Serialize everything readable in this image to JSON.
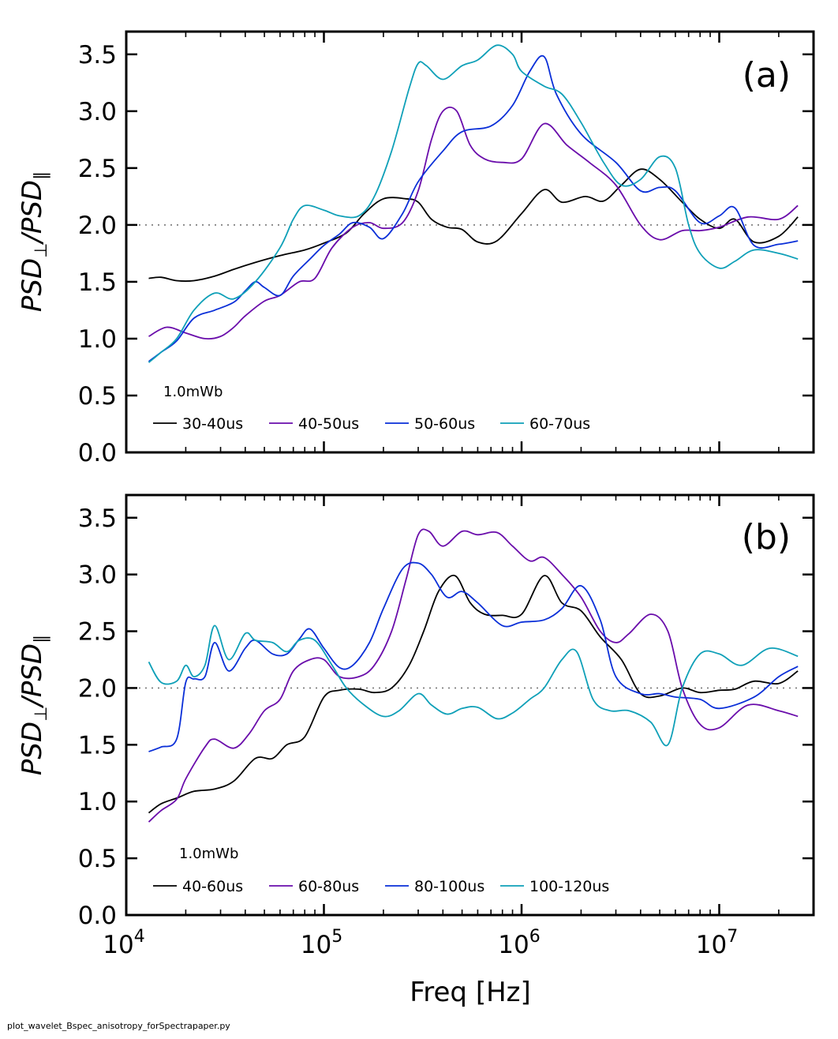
{
  "footer": "plot_wavelet_Bspec_anisotropy_forSpectrapaper.py",
  "chart_data": [
    {
      "type": "line",
      "panel_label": "(a)",
      "xscale": "log",
      "xlim": [
        10000,
        30000000
      ],
      "ylim": [
        0,
        3.7
      ],
      "xlabel": "",
      "ylabel": "PSD⊥/PSD∥",
      "yticks": [
        "0.0",
        "0.5",
        "1.0",
        "1.5",
        "2.0",
        "2.5",
        "3.0",
        "3.5"
      ],
      "xticks": [],
      "reference_line": 2.0,
      "legend_title": "1.0mWb",
      "legend_position": "lower-left",
      "series": [
        {
          "name": "30-40us",
          "color": "#000000",
          "x": [
            13000,
            15000,
            18000,
            22000,
            28000,
            35000,
            45000,
            60000,
            80000,
            100000,
            130000,
            160000,
            200000,
            260000,
            300000,
            350000,
            420000,
            500000,
            600000,
            750000,
            1000000,
            1300000,
            1600000,
            2100000,
            2600000,
            3200000,
            4000000,
            5000000,
            6500000,
            8000000,
            10000000,
            12000000,
            15000000,
            20000000,
            25000000
          ],
          "y": [
            1.53,
            1.54,
            1.51,
            1.51,
            1.55,
            1.61,
            1.67,
            1.73,
            1.78,
            1.84,
            1.93,
            2.1,
            2.23,
            2.23,
            2.2,
            2.05,
            1.98,
            1.96,
            1.85,
            1.86,
            2.1,
            2.31,
            2.2,
            2.25,
            2.21,
            2.35,
            2.49,
            2.4,
            2.2,
            2.05,
            1.97,
            2.05,
            1.85,
            1.9,
            2.07
          ]
        },
        {
          "name": "40-50us",
          "color": "#6a0dab",
          "x": [
            13000,
            16000,
            20000,
            25000,
            30000,
            35000,
            40000,
            50000,
            60000,
            75000,
            90000,
            110000,
            140000,
            170000,
            200000,
            250000,
            300000,
            350000,
            400000,
            470000,
            550000,
            650000,
            800000,
            1000000,
            1300000,
            1700000,
            2200000,
            3000000,
            4000000,
            5000000,
            6500000,
            8000000,
            10000000,
            14000000,
            20000000,
            25000000
          ],
          "y": [
            1.02,
            1.1,
            1.05,
            1.0,
            1.02,
            1.1,
            1.2,
            1.33,
            1.38,
            1.5,
            1.53,
            1.8,
            1.98,
            2.02,
            1.97,
            2.02,
            2.3,
            2.75,
            3.0,
            3.0,
            2.7,
            2.58,
            2.55,
            2.58,
            2.89,
            2.7,
            2.55,
            2.35,
            2.0,
            1.87,
            1.95,
            1.95,
            1.98,
            2.07,
            2.05,
            2.17
          ]
        },
        {
          "name": "50-60us",
          "color": "#0a2fd8",
          "x": [
            13000,
            15000,
            18000,
            22000,
            28000,
            35000,
            40000,
            45000,
            50000,
            60000,
            70000,
            85000,
            100000,
            120000,
            140000,
            170000,
            200000,
            250000,
            300000,
            400000,
            500000,
            700000,
            900000,
            1100000,
            1300000,
            1500000,
            2000000,
            3000000,
            4000000,
            5000000,
            6000000,
            8000000,
            10000000,
            12000000,
            15000000,
            20000000,
            25000000
          ],
          "y": [
            0.8,
            0.88,
            0.98,
            1.18,
            1.25,
            1.32,
            1.42,
            1.5,
            1.45,
            1.38,
            1.55,
            1.7,
            1.82,
            1.92,
            2.02,
            1.98,
            1.88,
            2.1,
            2.38,
            2.65,
            2.82,
            2.87,
            3.05,
            3.35,
            3.48,
            3.15,
            2.8,
            2.55,
            2.3,
            2.33,
            2.3,
            2.02,
            2.08,
            2.15,
            1.82,
            1.83,
            1.86
          ]
        },
        {
          "name": "60-70us",
          "color": "#0fa0b8",
          "x": [
            13000,
            15000,
            18000,
            22000,
            28000,
            35000,
            45000,
            60000,
            70000,
            80000,
            100000,
            120000,
            150000,
            180000,
            220000,
            270000,
            300000,
            330000,
            400000,
            500000,
            600000,
            750000,
            900000,
            1000000,
            1300000,
            1600000,
            2000000,
            2600000,
            3200000,
            4000000,
            5000000,
            6000000,
            7000000,
            8000000,
            10000000,
            12000000,
            15000000,
            20000000,
            25000000
          ],
          "y": [
            0.79,
            0.88,
            1.0,
            1.25,
            1.4,
            1.35,
            1.5,
            1.8,
            2.05,
            2.17,
            2.13,
            2.08,
            2.08,
            2.25,
            2.65,
            3.2,
            3.42,
            3.4,
            3.28,
            3.4,
            3.45,
            3.58,
            3.5,
            3.35,
            3.22,
            3.15,
            2.9,
            2.55,
            2.35,
            2.4,
            2.6,
            2.5,
            2.0,
            1.75,
            1.62,
            1.68,
            1.78,
            1.75,
            1.7
          ]
        }
      ]
    },
    {
      "type": "line",
      "panel_label": "(b)",
      "xscale": "log",
      "xlim": [
        10000,
        30000000
      ],
      "ylim": [
        0,
        3.7
      ],
      "xlabel": "Freq [Hz]",
      "ylabel": "PSD⊥/PSD∥",
      "yticks": [
        "0.0",
        "0.5",
        "1.0",
        "1.5",
        "2.0",
        "2.5",
        "3.0",
        "3.5"
      ],
      "xticks": [
        {
          "base": "10",
          "exp": "4"
        },
        {
          "base": "10",
          "exp": "5"
        },
        {
          "base": "10",
          "exp": "6"
        },
        {
          "base": "10",
          "exp": "7"
        }
      ],
      "reference_line": 2.0,
      "legend_title": "1.0mWb",
      "legend_position": "lower-left",
      "series": [
        {
          "name": "40-60us",
          "color": "#000000",
          "x": [
            13000,
            15000,
            18000,
            22000,
            28000,
            35000,
            45000,
            55000,
            65000,
            80000,
            100000,
            120000,
            150000,
            180000,
            220000,
            270000,
            320000,
            380000,
            460000,
            550000,
            650000,
            800000,
            1000000,
            1300000,
            1600000,
            2000000,
            2500000,
            3200000,
            4000000,
            5000000,
            6500000,
            8000000,
            10000000,
            12000000,
            15000000,
            20000000,
            25000000
          ],
          "y": [
            0.9,
            0.98,
            1.03,
            1.09,
            1.11,
            1.18,
            1.38,
            1.38,
            1.5,
            1.57,
            1.92,
            1.98,
            1.99,
            1.96,
            2.0,
            2.2,
            2.5,
            2.85,
            2.99,
            2.75,
            2.65,
            2.64,
            2.65,
            2.99,
            2.75,
            2.68,
            2.45,
            2.25,
            1.95,
            1.93,
            2.0,
            1.96,
            1.98,
            1.99,
            2.06,
            2.04,
            2.15
          ]
        },
        {
          "name": "60-80us",
          "color": "#6a0dab",
          "x": [
            13000,
            15000,
            18000,
            20000,
            25000,
            28000,
            35000,
            42000,
            50000,
            60000,
            70000,
            85000,
            100000,
            120000,
            150000,
            180000,
            220000,
            260000,
            300000,
            340000,
            400000,
            500000,
            600000,
            750000,
            900000,
            1100000,
            1300000,
            1600000,
            2000000,
            2500000,
            3000000,
            3500000,
            4500000,
            5500000,
            6500000,
            8000000,
            10000000,
            14000000,
            20000000,
            25000000
          ],
          "y": [
            0.82,
            0.92,
            1.02,
            1.2,
            1.48,
            1.55,
            1.47,
            1.6,
            1.8,
            1.9,
            2.15,
            2.25,
            2.25,
            2.1,
            2.1,
            2.2,
            2.5,
            2.95,
            3.35,
            3.38,
            3.25,
            3.38,
            3.35,
            3.37,
            3.25,
            3.12,
            3.15,
            3.0,
            2.8,
            2.5,
            2.4,
            2.48,
            2.65,
            2.5,
            2.0,
            1.68,
            1.65,
            1.85,
            1.8,
            1.75
          ]
        },
        {
          "name": "80-100us",
          "color": "#0a2fd8",
          "x": [
            13000,
            15000,
            18000,
            20000,
            22000,
            25000,
            28000,
            33000,
            40000,
            45000,
            55000,
            65000,
            75000,
            85000,
            100000,
            120000,
            140000,
            170000,
            200000,
            250000,
            300000,
            350000,
            420000,
            500000,
            600000,
            800000,
            1000000,
            1300000,
            1600000,
            2000000,
            2500000,
            3000000,
            4000000,
            5000000,
            6000000,
            8000000,
            10000000,
            15000000,
            20000000,
            25000000
          ],
          "y": [
            1.44,
            1.48,
            1.55,
            2.05,
            2.08,
            2.1,
            2.4,
            2.15,
            2.35,
            2.42,
            2.3,
            2.3,
            2.43,
            2.52,
            2.35,
            2.18,
            2.2,
            2.4,
            2.7,
            3.05,
            3.1,
            3.0,
            2.8,
            2.85,
            2.75,
            2.55,
            2.58,
            2.6,
            2.7,
            2.9,
            2.6,
            2.1,
            1.95,
            1.95,
            1.92,
            1.9,
            1.82,
            1.92,
            2.1,
            2.19
          ]
        },
        {
          "name": "100-120us",
          "color": "#0fa0b8",
          "x": [
            13000,
            15000,
            18000,
            20000,
            22000,
            25000,
            28000,
            33000,
            40000,
            45000,
            55000,
            65000,
            75000,
            90000,
            110000,
            130000,
            160000,
            200000,
            240000,
            300000,
            350000,
            420000,
            500000,
            600000,
            750000,
            900000,
            1100000,
            1300000,
            1600000,
            1900000,
            2300000,
            2800000,
            3500000,
            4500000,
            5500000,
            6500000,
            8000000,
            10000000,
            13000000,
            18000000,
            25000000
          ],
          "y": [
            2.23,
            2.05,
            2.06,
            2.2,
            2.1,
            2.2,
            2.55,
            2.25,
            2.48,
            2.42,
            2.4,
            2.32,
            2.42,
            2.42,
            2.2,
            2.0,
            1.85,
            1.75,
            1.8,
            1.95,
            1.85,
            1.77,
            1.82,
            1.83,
            1.73,
            1.78,
            1.9,
            2.0,
            2.25,
            2.32,
            1.9,
            1.8,
            1.8,
            1.7,
            1.5,
            2.0,
            2.3,
            2.3,
            2.2,
            2.35,
            2.28
          ]
        }
      ]
    }
  ]
}
